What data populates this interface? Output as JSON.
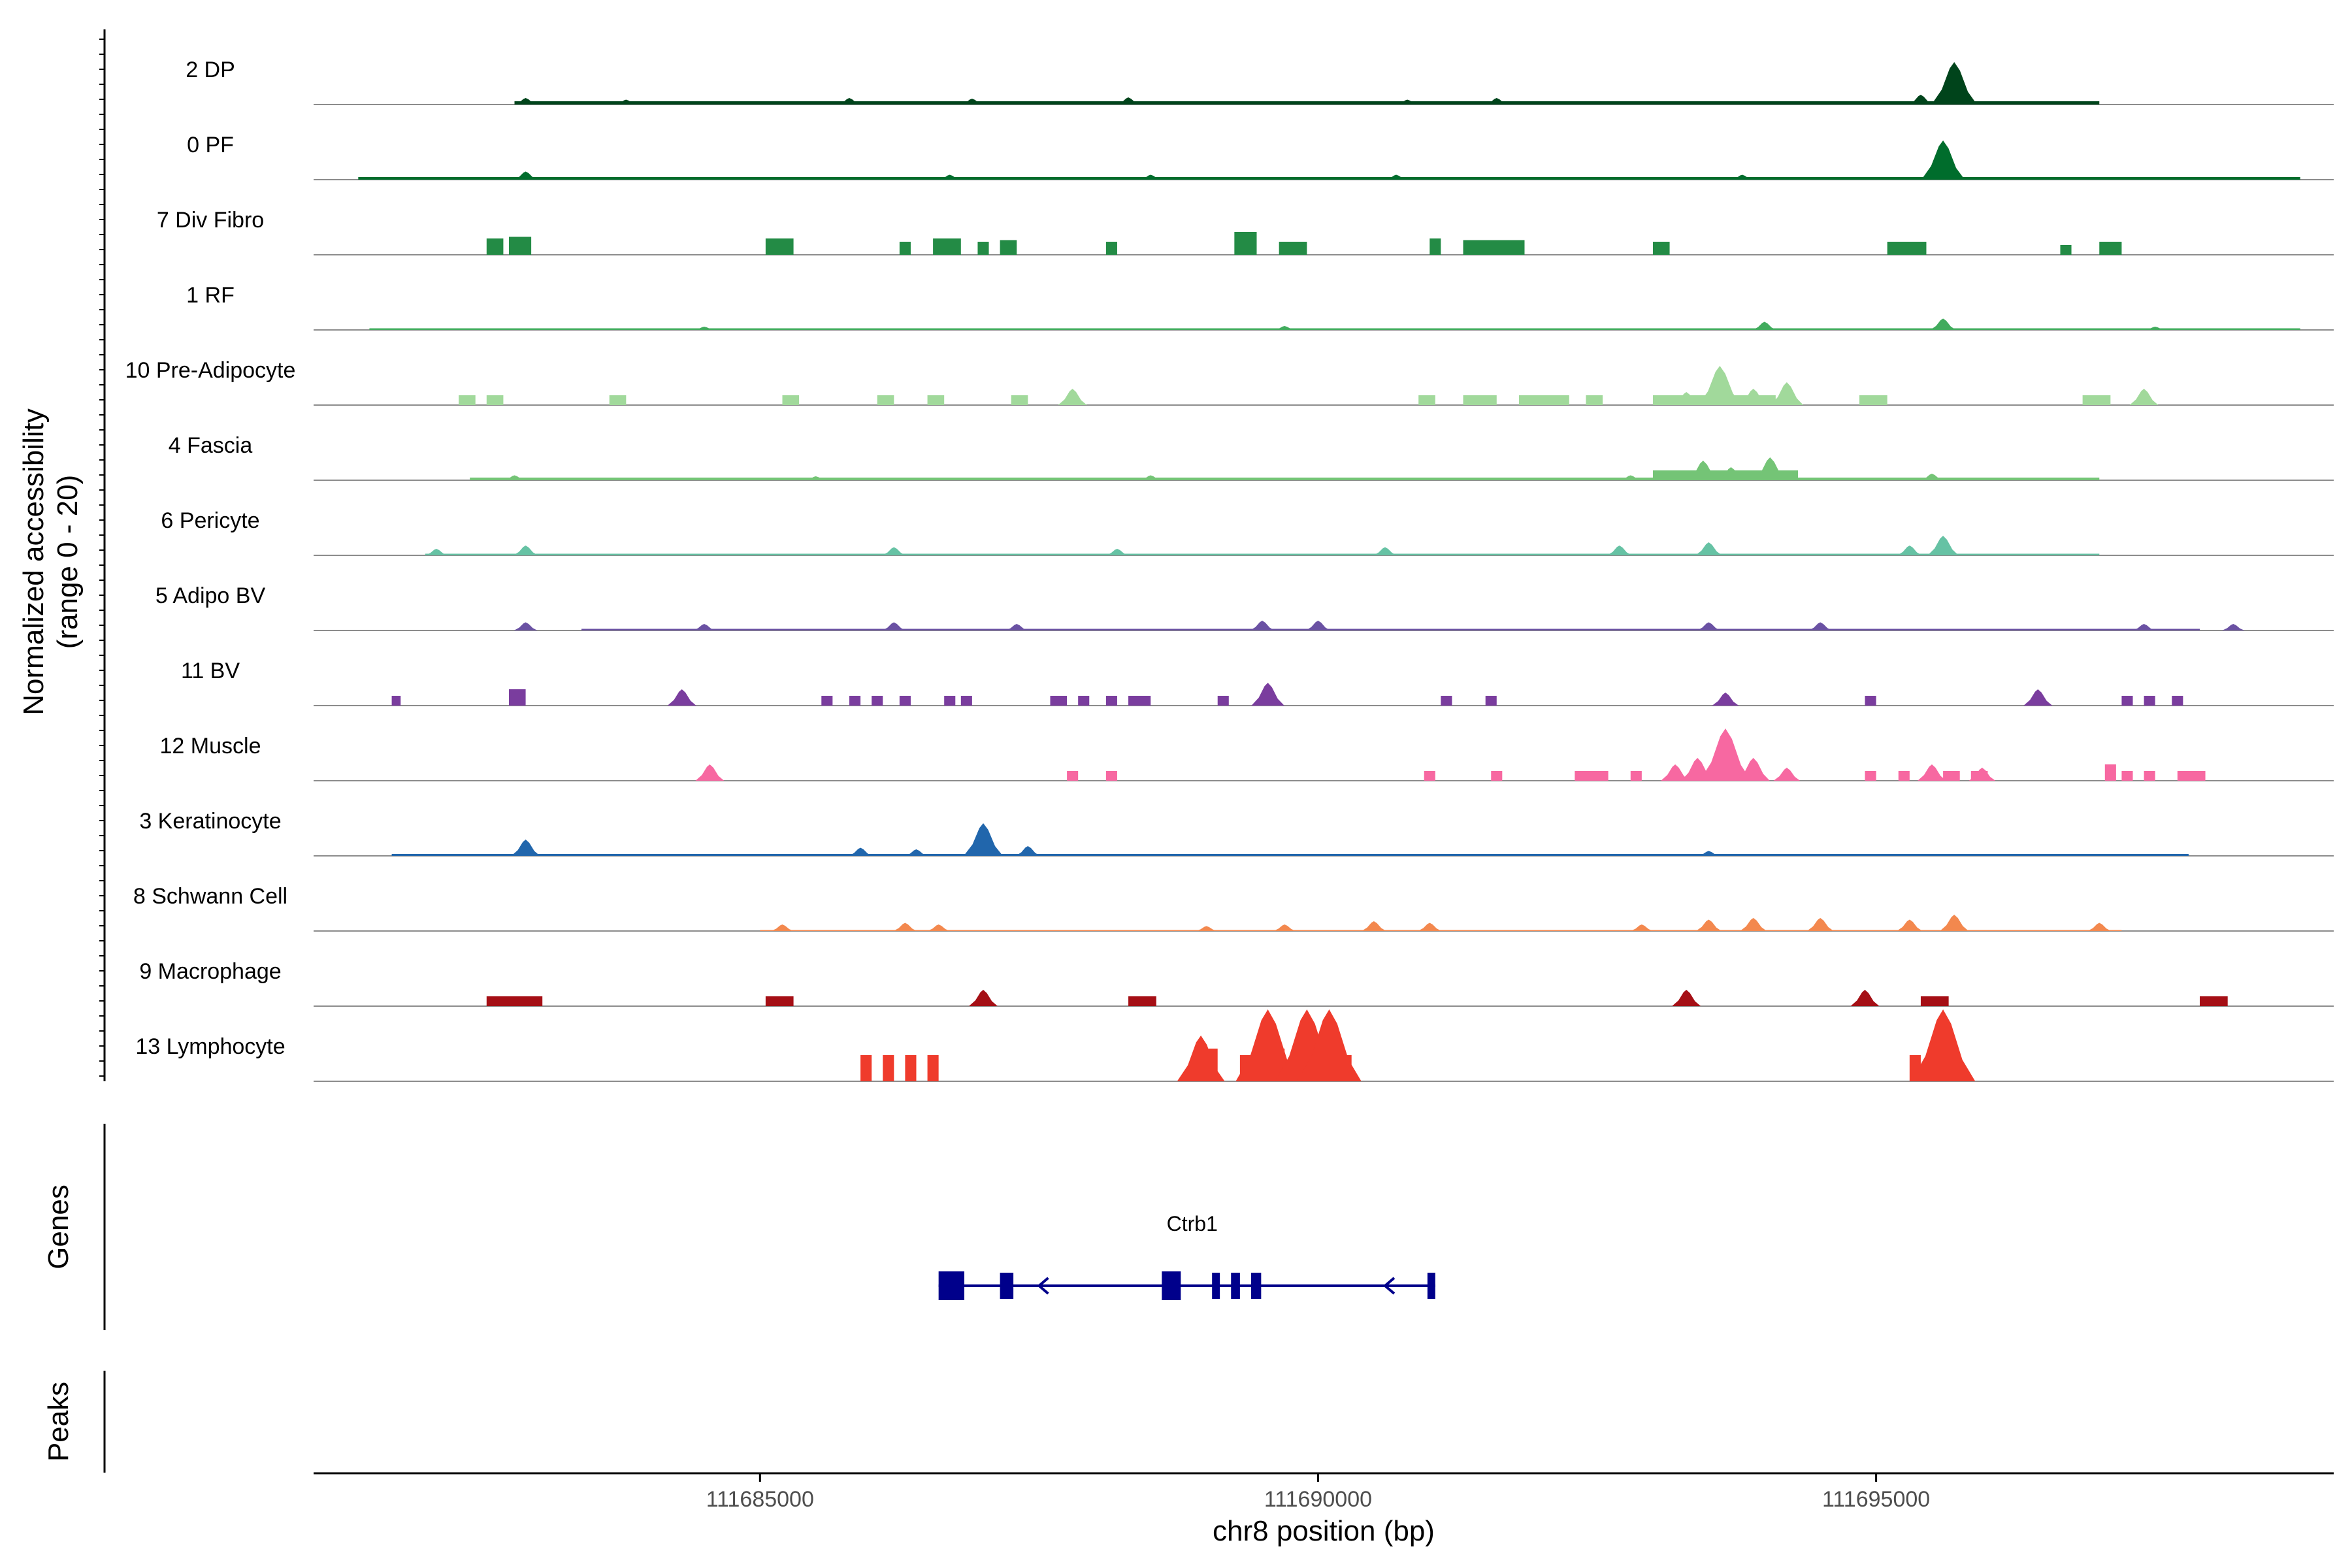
{
  "chart_data": {
    "type": "area",
    "title": "",
    "ylabel_line1": "Normalized accessibility",
    "ylabel_line2": "(range 0 - 20)",
    "yrange": [
      0,
      20
    ],
    "xlabel": "chr8 position (bp)",
    "xlim": [
      111681000,
      111699100
    ],
    "xticks": [
      111685000,
      111690000,
      111695000
    ],
    "xtick_labels": [
      "111685000",
      "111690000",
      "111695000"
    ],
    "genes_label": "Genes",
    "peaks_label": "Peaks",
    "gene": {
      "name": "Ctrb1",
      "start": 111686600,
      "end": 111691050,
      "strand": "-",
      "color": "#00008b",
      "exons": [
        [
          111686600,
          111686830
        ],
        [
          111687150,
          111687270
        ],
        [
          111688600,
          111688770
        ],
        [
          111689050,
          111689120
        ],
        [
          111689220,
          111689300
        ],
        [
          111689400,
          111689490
        ],
        [
          111690980,
          111691050
        ]
      ],
      "arrows": [
        111687500,
        111690600
      ]
    },
    "tracks": [
      {
        "name": "2 DP",
        "color": "#00441b",
        "segments": [
          [
            111682800,
            111697000,
            1
          ]
        ],
        "peaks": [
          [
            111682900,
            2
          ],
          [
            111683800,
            1.5
          ],
          [
            111685800,
            2
          ],
          [
            111686900,
            1.8
          ],
          [
            111688300,
            2.2
          ],
          [
            111690800,
            1.5
          ],
          [
            111691600,
            2
          ],
          [
            111695700,
            13
          ],
          [
            111695400,
            3
          ]
        ]
      },
      {
        "name": "0 PF",
        "color": "#006d2c",
        "segments": [
          [
            111681400,
            111698800,
            0.8
          ]
        ],
        "peaks": [
          [
            111682900,
            2.5
          ],
          [
            111686700,
            1.5
          ],
          [
            111688500,
            1.5
          ],
          [
            111690700,
            1.5
          ],
          [
            111695600,
            12
          ],
          [
            111693800,
            1.5
          ]
        ]
      },
      {
        "name": "7 Div Fibro",
        "color": "#238b45",
        "segments": [
          [
            111682550,
            111682700,
            5
          ],
          [
            111682750,
            111682950,
            5.5
          ],
          [
            111685050,
            111685300,
            5
          ],
          [
            111686250,
            111686350,
            4
          ],
          [
            111686550,
            111686800,
            5
          ],
          [
            111686950,
            111687050,
            4
          ],
          [
            111687150,
            111687300,
            4.5
          ],
          [
            111688100,
            111688200,
            4
          ],
          [
            111689250,
            111689450,
            7
          ],
          [
            111689650,
            111689900,
            4
          ],
          [
            111691000,
            111691100,
            5
          ],
          [
            111691300,
            111691850,
            4.5
          ],
          [
            111693000,
            111693150,
            4
          ],
          [
            111695100,
            111695450,
            4
          ],
          [
            111696650,
            111696750,
            3
          ],
          [
            111697000,
            111697200,
            4
          ]
        ],
        "peaks": []
      },
      {
        "name": "1 RF",
        "color": "#41ab5d",
        "segments": [
          [
            111681500,
            111698800,
            0.5
          ]
        ],
        "peaks": [
          [
            111684500,
            1
          ],
          [
            111689700,
            1.2
          ],
          [
            111694000,
            2.5
          ],
          [
            111695600,
            3.5
          ],
          [
            111697500,
            1
          ]
        ]
      },
      {
        "name": "10 Pre-Adipocyte",
        "color": "#a1d99b",
        "segments": [
          [
            111682300,
            111682450,
            3
          ],
          [
            111682550,
            111682700,
            3
          ],
          [
            111683650,
            111683800,
            3
          ],
          [
            111685200,
            111685350,
            3
          ],
          [
            111686050,
            111686200,
            3
          ],
          [
            111686500,
            111686650,
            3
          ],
          [
            111687250,
            111687400,
            3
          ],
          [
            111690900,
            111691050,
            3
          ],
          [
            111691300,
            111691600,
            3
          ],
          [
            111691800,
            111692250,
            3
          ],
          [
            111692400,
            111692550,
            3
          ],
          [
            111694850,
            111695100,
            3
          ],
          [
            111696850,
            111697100,
            3
          ]
        ],
        "peaks": [
          [
            111687800,
            5
          ],
          [
            111693300,
            4
          ],
          [
            111693600,
            12
          ],
          [
            111693900,
            5
          ],
          [
            111694200,
            7
          ],
          [
            111697400,
            5
          ]
        ],
        "wide": [
          [
            111693000,
            111694100,
            3
          ]
        ]
      },
      {
        "name": "4 Fascia",
        "color": "#74c476",
        "segments": [
          [
            111682400,
            111697000,
            0.8
          ]
        ],
        "peaks": [
          [
            111682800,
            1.5
          ],
          [
            111685500,
            1.2
          ],
          [
            111688500,
            1.5
          ],
          [
            111692800,
            1.5
          ],
          [
            111693450,
            6
          ],
          [
            111693700,
            4
          ],
          [
            111694050,
            7
          ],
          [
            111695500,
            2
          ]
        ],
        "wide": [
          [
            111693000,
            111694300,
            3
          ]
        ]
      },
      {
        "name": "6 Pericyte",
        "color": "#66c2a4",
        "segments": [
          [
            111682000,
            111697000,
            0.5
          ]
        ],
        "peaks": [
          [
            111682100,
            2
          ],
          [
            111682900,
            3
          ],
          [
            111686200,
            2.5
          ],
          [
            111688200,
            2
          ],
          [
            111690600,
            2.5
          ],
          [
            111692700,
            3
          ],
          [
            111693500,
            4
          ],
          [
            111695600,
            6
          ],
          [
            111695300,
            3
          ]
        ]
      },
      {
        "name": "5 Adipo BV",
        "color": "#6a51a3",
        "segments": [
          [
            111683400,
            111697900,
            0.5
          ]
        ],
        "peaks": [
          [
            111682900,
            2.5
          ],
          [
            111684500,
            2
          ],
          [
            111686200,
            2.5
          ],
          [
            111687300,
            2
          ],
          [
            111689500,
            3
          ],
          [
            111690000,
            3
          ],
          [
            111693500,
            2.5
          ],
          [
            111694500,
            2.5
          ],
          [
            111697400,
            2
          ],
          [
            111698200,
            2
          ]
        ]
      },
      {
        "name": "11 BV",
        "color": "#7a3d9e",
        "segments": [
          [
            111681700,
            111681780,
            3
          ],
          [
            111682750,
            111682900,
            5
          ],
          [
            111685550,
            111685650,
            3
          ],
          [
            111685800,
            111685900,
            3
          ],
          [
            111686000,
            111686100,
            3
          ],
          [
            111686250,
            111686350,
            3
          ],
          [
            111686650,
            111686750,
            3
          ],
          [
            111686800,
            111686900,
            3
          ],
          [
            111687600,
            111687750,
            3
          ],
          [
            111687850,
            111687950,
            3
          ],
          [
            111688100,
            111688200,
            3
          ],
          [
            111688300,
            111688500,
            3
          ],
          [
            111689100,
            111689200,
            3
          ],
          [
            111691100,
            111691200,
            3
          ],
          [
            111691500,
            111691600,
            3
          ],
          [
            111694900,
            111695000,
            3
          ],
          [
            111697200,
            111697300,
            3
          ],
          [
            111697400,
            111697500,
            3
          ],
          [
            111697650,
            111697750,
            3
          ]
        ],
        "peaks": [
          [
            111684300,
            5
          ],
          [
            111689550,
            7
          ],
          [
            111693650,
            4
          ],
          [
            111696450,
            5
          ]
        ]
      },
      {
        "name": "12 Muscle",
        "color": "#f768a1",
        "segments": [
          [
            111687750,
            111687850,
            3
          ],
          [
            111688100,
            111688200,
            3
          ],
          [
            111690950,
            111691050,
            3
          ],
          [
            111691550,
            111691650,
            3
          ],
          [
            111692300,
            111692600,
            3
          ],
          [
            111692800,
            111692900,
            3
          ],
          [
            111693200,
            111693250,
            3
          ],
          [
            111694900,
            111695000,
            3
          ],
          [
            111695200,
            111695300,
            3
          ],
          [
            111695600,
            111695750,
            3
          ],
          [
            111695850,
            111696000,
            3
          ],
          [
            111697050,
            111697150,
            5
          ],
          [
            111697200,
            111697300,
            3
          ],
          [
            111697400,
            111697500,
            3
          ],
          [
            111697700,
            111697950,
            3
          ]
        ],
        "peaks": [
          [
            111684550,
            5
          ],
          [
            111693200,
            5
          ],
          [
            111693400,
            7
          ],
          [
            111693650,
            16
          ],
          [
            111693900,
            7
          ],
          [
            111694200,
            4
          ],
          [
            111695500,
            5
          ],
          [
            111695950,
            4
          ]
        ]
      },
      {
        "name": "3 Keratinocyte",
        "color": "#2166ac",
        "segments": [
          [
            111681700,
            111697800,
            0.6
          ]
        ],
        "peaks": [
          [
            111682900,
            5
          ],
          [
            111685900,
            2.5
          ],
          [
            111687000,
            10
          ],
          [
            111687400,
            3
          ],
          [
            111686400,
            2
          ],
          [
            111693500,
            1.5
          ]
        ]
      },
      {
        "name": "8 Schwann Cell",
        "color": "#f3884e",
        "segments": [
          [
            111685000,
            111697200,
            0.3
          ]
        ],
        "peaks": [
          [
            111685200,
            2
          ],
          [
            111686300,
            2.5
          ],
          [
            111686600,
            2
          ],
          [
            111689000,
            1.5
          ],
          [
            111689700,
            2
          ],
          [
            111690500,
            3
          ],
          [
            111691000,
            2.5
          ],
          [
            111692900,
            2
          ],
          [
            111693500,
            3.5
          ],
          [
            111693900,
            4
          ],
          [
            111694500,
            4
          ],
          [
            111695300,
            3.5
          ],
          [
            111695700,
            5
          ],
          [
            111697000,
            2.5
          ]
        ]
      },
      {
        "name": "9 Macrophage",
        "color": "#a50f15",
        "segments": [
          [
            111682550,
            111683050,
            3
          ],
          [
            111685050,
            111685300,
            3
          ],
          [
            111688300,
            111688550,
            3
          ],
          [
            111694850,
            111694950,
            3
          ],
          [
            111695400,
            111695650,
            3
          ],
          [
            111697900,
            111698150,
            3
          ]
        ],
        "peaks": [
          [
            111687000,
            5
          ],
          [
            111693300,
            5
          ],
          [
            111694900,
            5
          ]
        ]
      },
      {
        "name": "13 Lymphocyte",
        "color": "#ef3b2c",
        "segments": [
          [
            111685900,
            111686000,
            8
          ],
          [
            111686100,
            111686200,
            8
          ],
          [
            111686300,
            111686400,
            8
          ],
          [
            111686500,
            111686600,
            8
          ],
          [
            111689000,
            111689100,
            10
          ],
          [
            111689300,
            111689450,
            8
          ],
          [
            111689600,
            111689700,
            10
          ],
          [
            111689800,
            111690100,
            10
          ],
          [
            111690200,
            111690300,
            8
          ],
          [
            111695300,
            111695400,
            8
          ]
        ],
        "peaks": [
          [
            111688950,
            14
          ],
          [
            111689550,
            22
          ],
          [
            111689900,
            22
          ],
          [
            111690100,
            22
          ],
          [
            111695600,
            22
          ]
        ]
      }
    ]
  }
}
